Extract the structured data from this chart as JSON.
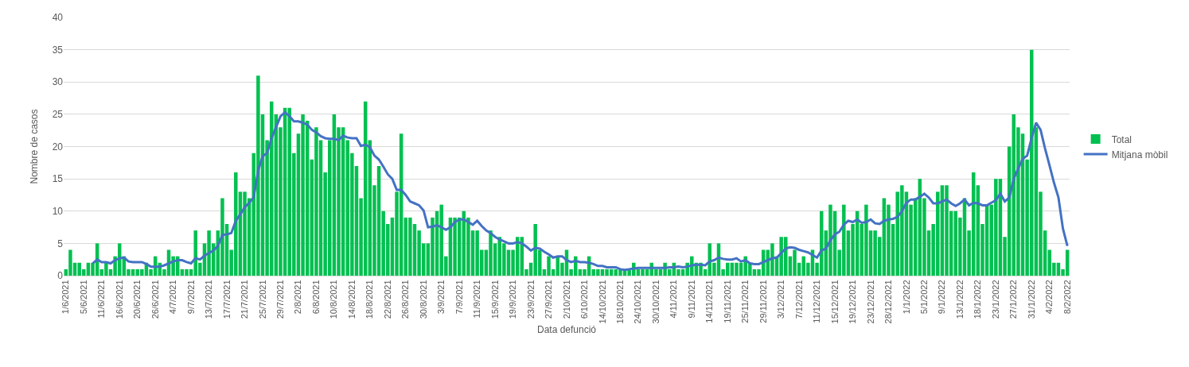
{
  "chart_data": {
    "type": "bar",
    "xlabel": "Data defunció",
    "ylabel": "Nombre de casos",
    "categories": [
      "1/6/2021",
      null,
      null,
      null,
      "5/6/2021",
      null,
      null,
      null,
      "11/6/2021",
      null,
      null,
      null,
      "16/6/2021",
      null,
      null,
      null,
      "20/6/2021",
      null,
      null,
      null,
      "26/6/2021",
      null,
      null,
      null,
      "4/7/2021",
      null,
      null,
      null,
      "9/7/2021",
      null,
      null,
      null,
      "13/7/2021",
      null,
      null,
      null,
      "17/7/2021",
      null,
      null,
      null,
      "21/7/2021",
      null,
      null,
      null,
      "25/7/2021",
      null,
      null,
      null,
      "29/7/2021",
      null,
      null,
      null,
      "2/8/2021",
      null,
      null,
      null,
      "6/8/2021",
      null,
      null,
      null,
      "10/8/2021",
      null,
      null,
      null,
      "14/8/2021",
      null,
      null,
      null,
      "18/8/2021",
      null,
      null,
      null,
      "22/8/2021",
      null,
      null,
      null,
      "26/8/2021",
      null,
      null,
      null,
      "30/8/2021",
      null,
      null,
      null,
      "3/9/2021",
      null,
      null,
      null,
      "7/9/2021",
      null,
      null,
      null,
      "11/9/2021",
      null,
      null,
      null,
      "15/9/2021",
      null,
      null,
      null,
      "19/9/2021",
      null,
      null,
      null,
      "23/9/2021",
      null,
      null,
      null,
      "27/9/2021",
      null,
      null,
      null,
      "2/10/2021",
      null,
      null,
      null,
      "6/10/2021",
      null,
      null,
      null,
      "14/10/2021",
      null,
      null,
      null,
      "18/10/2021",
      null,
      null,
      null,
      "24/10/2021",
      null,
      null,
      null,
      "30/10/2021",
      null,
      null,
      null,
      "4/11/2021",
      null,
      null,
      null,
      "9/11/2021",
      null,
      null,
      null,
      "14/11/2021",
      null,
      null,
      null,
      "19/11/2021",
      null,
      null,
      null,
      "25/11/2021",
      null,
      null,
      null,
      "29/11/2021",
      null,
      null,
      null,
      "3/12/2021",
      null,
      null,
      null,
      "7/12/2021",
      null,
      null,
      null,
      "11/12/2021",
      null,
      null,
      null,
      "15/12/2021",
      null,
      null,
      null,
      "19/12/2021",
      null,
      null,
      null,
      "23/12/2021",
      null,
      null,
      null,
      "28/12/2021",
      null,
      null,
      null,
      "1/1/2022",
      null,
      null,
      null,
      "5/1/2022",
      null,
      null,
      null,
      "9/1/2022",
      null,
      null,
      null,
      "13/1/2022",
      null,
      null,
      null,
      "18/1/2022",
      null,
      null,
      null,
      "23/1/2022",
      null,
      null,
      null,
      "27/1/2022",
      null,
      null,
      null,
      "31/1/2022",
      null,
      null,
      null,
      "4/2/2022",
      null,
      null,
      null,
      "8/2/2022"
    ],
    "series": [
      {
        "name": "Total",
        "color": "#00c050",
        "values": [
          1,
          4,
          2,
          2,
          1,
          2,
          2,
          5,
          1,
          2,
          1,
          3,
          5,
          3,
          1,
          1,
          1,
          1,
          2,
          1,
          3,
          2,
          1,
          4,
          3,
          3,
          1,
          1,
          1,
          7,
          2,
          5,
          7,
          5,
          7,
          12,
          8,
          4,
          16,
          13,
          13,
          12,
          19,
          31,
          25,
          21,
          27,
          25,
          23,
          26,
          26,
          19,
          22,
          25,
          24,
          18,
          23,
          21,
          16,
          21,
          25,
          23,
          23,
          21,
          19,
          17,
          12,
          27,
          21,
          14,
          17,
          10,
          8,
          9,
          13,
          22,
          9,
          9,
          8,
          7,
          5,
          5,
          9,
          10,
          11,
          3,
          9,
          9,
          9,
          10,
          9,
          7,
          7,
          4,
          4,
          7,
          5,
          6,
          5,
          4,
          4,
          6,
          6,
          1,
          2,
          8,
          4,
          1,
          3,
          1,
          3,
          2,
          4,
          1,
          3,
          1,
          1,
          3,
          1,
          1,
          1,
          1,
          1,
          1,
          1,
          1,
          1,
          2,
          1,
          1,
          1,
          2,
          1,
          1,
          2,
          1,
          2,
          1,
          1,
          2,
          3,
          2,
          2,
          1,
          5,
          2,
          5,
          1,
          2,
          2,
          2,
          2,
          3,
          2,
          1,
          1,
          4,
          4,
          5,
          3,
          6,
          6,
          3,
          4,
          2,
          3,
          2,
          4,
          2,
          10,
          7,
          11,
          10,
          4,
          11,
          7,
          8,
          10,
          8,
          11,
          7,
          7,
          6,
          12,
          11,
          8,
          13,
          14,
          13,
          11,
          12,
          15,
          12,
          7,
          8,
          13,
          14,
          14,
          10,
          10,
          9,
          12,
          7,
          16,
          14,
          8,
          11,
          11,
          15,
          15,
          6,
          20,
          25,
          23,
          22,
          18,
          35,
          23,
          13,
          7,
          4,
          2,
          2,
          1,
          4
        ]
      },
      {
        "name": "Mitjana mòbil",
        "type": "line",
        "color": "#4472c4",
        "values": [
          null,
          null,
          null,
          null,
          null,
          null,
          1.9,
          2.5,
          2.1,
          2.1,
          1.9,
          2.4,
          2.7,
          2.8,
          2.2,
          2.1,
          2.1,
          2.1,
          1.8,
          1.4,
          1.4,
          1.4,
          1.6,
          1.9,
          2.2,
          2.4,
          2.4,
          2.1,
          1.9,
          2.7,
          2.5,
          3.1,
          3.5,
          3.9,
          4.6,
          6.3,
          6.4,
          6.6,
          8.5,
          9.5,
          10.6,
          11.3,
          12.1,
          16.3,
          18.5,
          19.0,
          21.3,
          23.0,
          24.7,
          25.3,
          24.7,
          23.9,
          23.9,
          23.7,
          23.4,
          22.6,
          22.2,
          21.6,
          21.3,
          21.2,
          21.2,
          21.0,
          21.7,
          21.4,
          21.3,
          21.3,
          20.1,
          20.3,
          19.9,
          18.6,
          18.0,
          16.9,
          15.7,
          15.0,
          13.3,
          13.3,
          12.5,
          11.5,
          11.2,
          10.9,
          10.1,
          7.5,
          7.6,
          7.8,
          7.5,
          7.1,
          7.5,
          8.3,
          8.7,
          8.7,
          8.3,
          7.9,
          8.5,
          7.7,
          7.0,
          6.6,
          6.0,
          5.6,
          5.3,
          5.0,
          5.0,
          5.2,
          5.0,
          4.5,
          3.9,
          4.3,
          4.2,
          3.7,
          3.3,
          2.8,
          3.0,
          3.0,
          2.4,
          2.1,
          2.3,
          2.1,
          2.1,
          2.0,
          1.8,
          1.5,
          1.5,
          1.3,
          1.3,
          1.3,
          1.0,
          0.9,
          1.0,
          1.1,
          1.2,
          1.2,
          1.2,
          1.2,
          1.2,
          1.2,
          1.2,
          1.3,
          1.3,
          1.4,
          1.3,
          1.4,
          1.6,
          1.7,
          1.7,
          1.6,
          2.2,
          2.4,
          2.8,
          2.6,
          2.5,
          2.5,
          2.7,
          2.2,
          2.4,
          1.9,
          1.8,
          1.8,
          2.1,
          2.4,
          2.7,
          2.8,
          3.5,
          4.2,
          4.4,
          4.3,
          4.0,
          3.8,
          3.6,
          3.2,
          2.8,
          3.9,
          4.2,
          5.5,
          6.4,
          6.8,
          7.9,
          8.5,
          8.3,
          8.7,
          8.2,
          8.3,
          8.7,
          8.1,
          8.0,
          8.5,
          8.7,
          8.8,
          9.1,
          10.0,
          11.3,
          11.8,
          11.8,
          12.2,
          12.7,
          12.1,
          11.2,
          11.2,
          11.5,
          11.8,
          11.2,
          10.8,
          11.2,
          11.8,
          10.9,
          11.3,
          11.2,
          10.9,
          10.9,
          11.3,
          11.7,
          12.7,
          11.5,
          12.1,
          15.0,
          16.6,
          18.1,
          18.6,
          21.3,
          23.7,
          22.6,
          19.7,
          17.1,
          14.4,
          12.1,
          7.3,
          4.6
        ]
      }
    ],
    "ylim": [
      0,
      40
    ],
    "yticks": [
      0,
      5,
      10,
      15,
      20,
      25,
      30,
      35,
      40
    ],
    "grid": "y",
    "legend": "right",
    "marker": "none",
    "line_style": "solid"
  }
}
